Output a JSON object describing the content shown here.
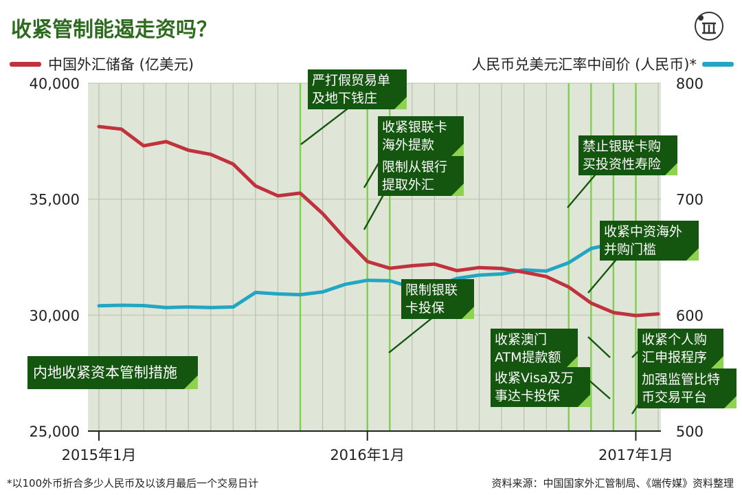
{
  "title": "收紧管制能遏走资吗？",
  "legend_left": "中国外汇储备 (亿美元)",
  "legend_right": "人民币兑美元汇率中间价 (人民币)*",
  "main_label": "内地收紧资本管制措施",
  "footnote": "*以100外币折合多少人民币及以该月最后一个交易日计",
  "source": "资料来源：中国国家外汇管制局、《端传媒》资料整理",
  "colors": {
    "reserves": "#c0333d",
    "rate": "#23a6c4",
    "box": "#14550f",
    "title": "#2d6b1f",
    "event": "#7ed04a"
  },
  "callouts": [
    {
      "lines": [
        "严打假贸易单",
        "及地下钱庄"
      ]
    },
    {
      "lines": [
        "收紧银联卡",
        "海外提款"
      ]
    },
    {
      "lines": [
        "限制从银行",
        "提取外汇"
      ]
    },
    {
      "lines": [
        "限制银联",
        "卡投保"
      ]
    },
    {
      "lines": [
        "禁止银联卡购",
        "买投资性寿险"
      ]
    },
    {
      "lines": [
        "收紧中资海外",
        "并购门槛"
      ]
    },
    {
      "lines": [
        "收紧澳门",
        "ATM提款额"
      ]
    },
    {
      "lines": [
        "收紧Visa及万",
        "事达卡投保"
      ]
    },
    {
      "lines": [
        "收紧个人购",
        "汇申报程序"
      ]
    },
    {
      "lines": [
        "加强监管比特",
        "币交易平台"
      ]
    }
  ],
  "chart_data": {
    "type": "line",
    "x": [
      "2015-01",
      "2015-02",
      "2015-03",
      "2015-04",
      "2015-05",
      "2015-06",
      "2015-07",
      "2015-08",
      "2015-09",
      "2015-10",
      "2015-11",
      "2015-12",
      "2016-01",
      "2016-02",
      "2016-03",
      "2016-04",
      "2016-05",
      "2016-06",
      "2016-07",
      "2016-08",
      "2016-09",
      "2016-10",
      "2016-11",
      "2016-12",
      "2017-01",
      "2017-02"
    ],
    "x_tick_labels": [
      "2015年1月",
      "2016年1月",
      "2017年1月"
    ],
    "series": [
      {
        "name": "中国外汇储备 (亿美元)",
        "axis": "left",
        "values": [
          38130,
          38020,
          37300,
          37480,
          37110,
          36930,
          36510,
          35570,
          35140,
          35260,
          34380,
          33300,
          32310,
          32020,
          32130,
          32200,
          31920,
          32050,
          32010,
          31850,
          31660,
          31210,
          30520,
          30110,
          29980,
          30050
        ]
      },
      {
        "name": "人民币兑美元汇率中间价 (人民币)*",
        "axis": "right",
        "values": [
          608.0,
          608.5,
          608.2,
          606.5,
          607.0,
          606.5,
          607.0,
          619.5,
          618.3,
          617.6,
          620.0,
          626.5,
          630.0,
          629.6,
          623.9,
          624.4,
          631.6,
          634.5,
          635.5,
          639.0,
          638.0,
          645.2,
          657.4,
          661.5,
          654.2,
          655.0
        ]
      }
    ],
    "y_left": {
      "ticks": [
        "25,000",
        "30,000",
        "35,000",
        "40,000"
      ],
      "ylim": [
        25000,
        40000
      ]
    },
    "y_right": {
      "ticks": [
        "500",
        "600",
        "700",
        "800"
      ],
      "ylim": [
        500,
        800
      ]
    },
    "event_markers": [
      "2015-10",
      "2016-01",
      "2016-02",
      "2016-10",
      "2016-11",
      "2016-12",
      "2017-01"
    ],
    "grid": true
  }
}
